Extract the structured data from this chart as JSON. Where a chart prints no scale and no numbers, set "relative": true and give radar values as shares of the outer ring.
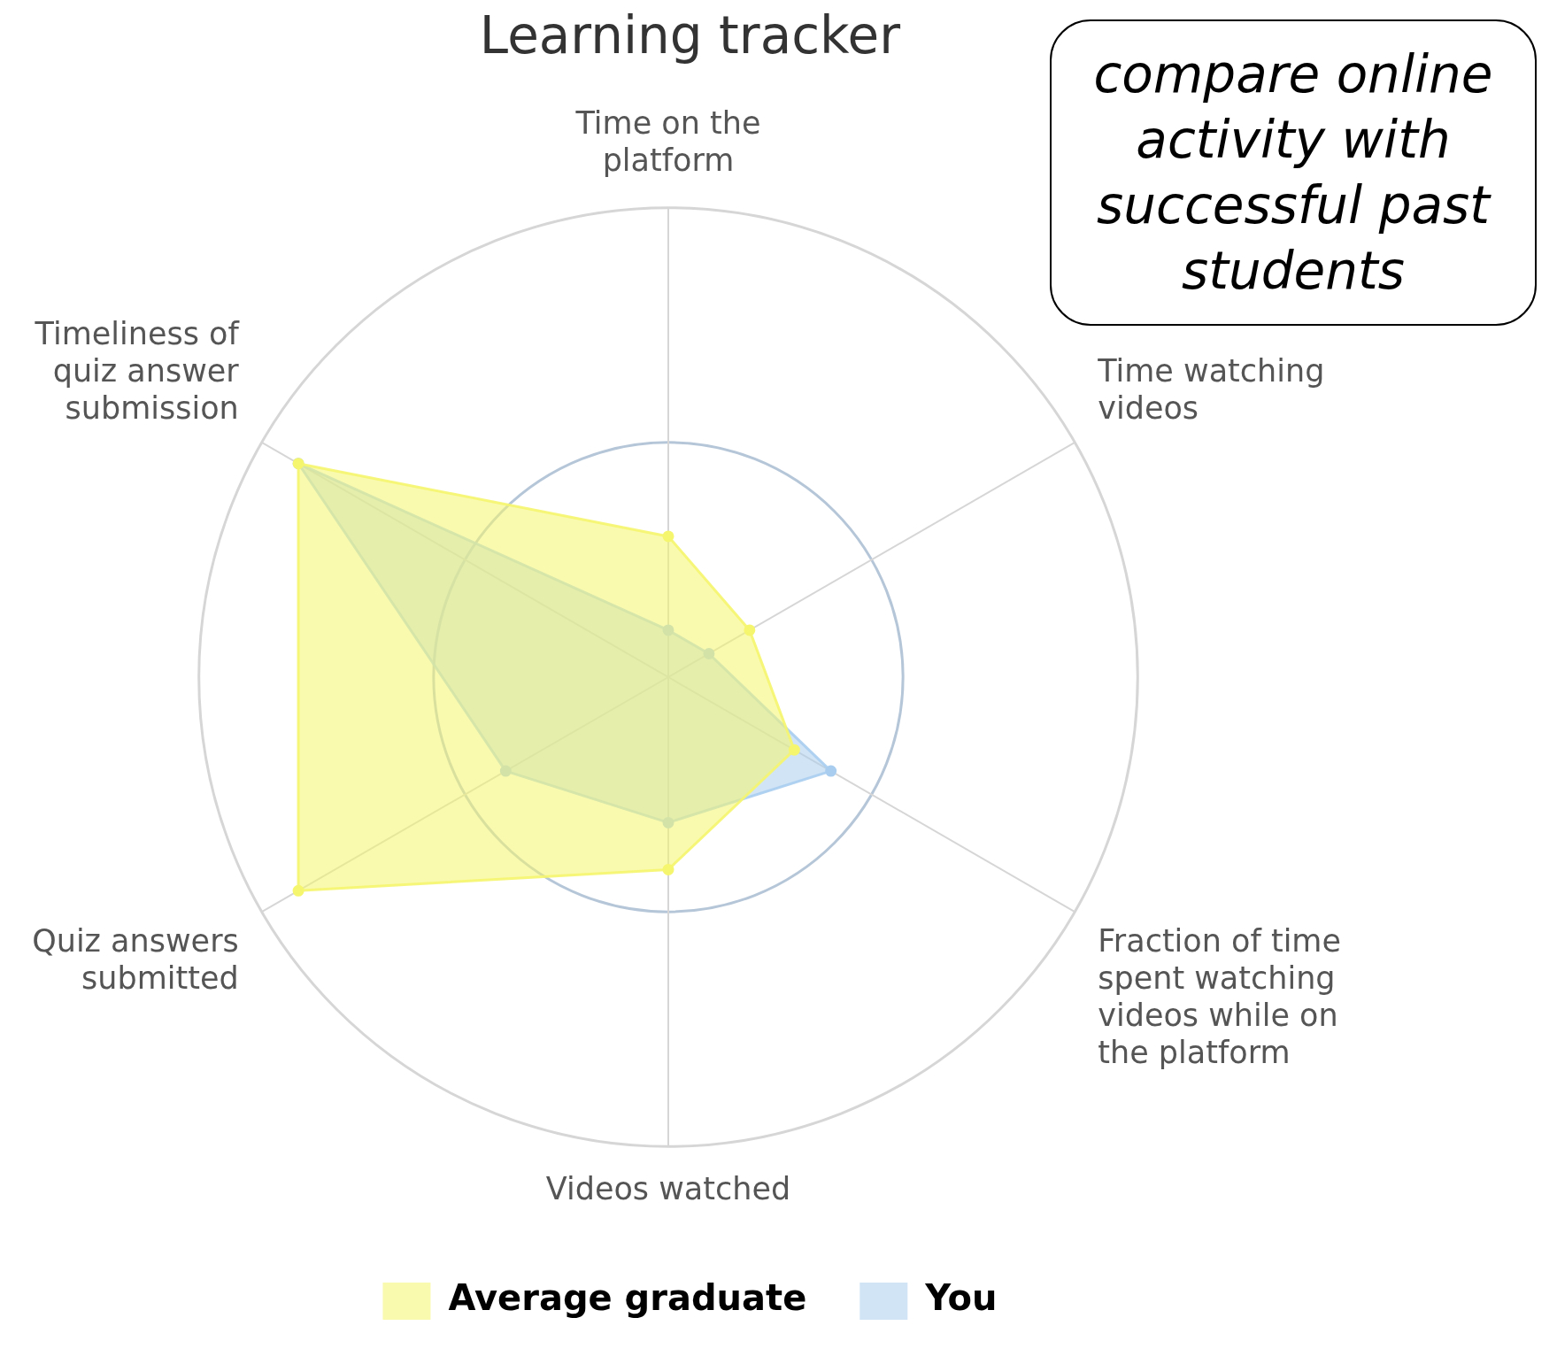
{
  "chart_data": {
    "type": "radar",
    "title": "Learning tracker",
    "relative": true,
    "grid": true,
    "legend": "bottom",
    "marker": "circle",
    "categories": [
      "Time on the platform",
      "Time watching videos",
      "Fraction of time spent watching videos while on the platform",
      "Videos watched",
      "Quiz answers submitted",
      "Timeliness of quiz answer submission"
    ],
    "series": [
      {
        "name": "Average graduate",
        "color": "#f5f56e",
        "values": [
          0.3,
          0.2,
          0.31,
          0.41,
          0.91,
          0.91
        ]
      },
      {
        "name": "You",
        "color": "#a9cdef",
        "values": [
          0.1,
          0.1,
          0.4,
          0.31,
          0.4,
          0.91
        ]
      }
    ],
    "annotations": [
      "compare online activity with successful past students"
    ]
  }
}
